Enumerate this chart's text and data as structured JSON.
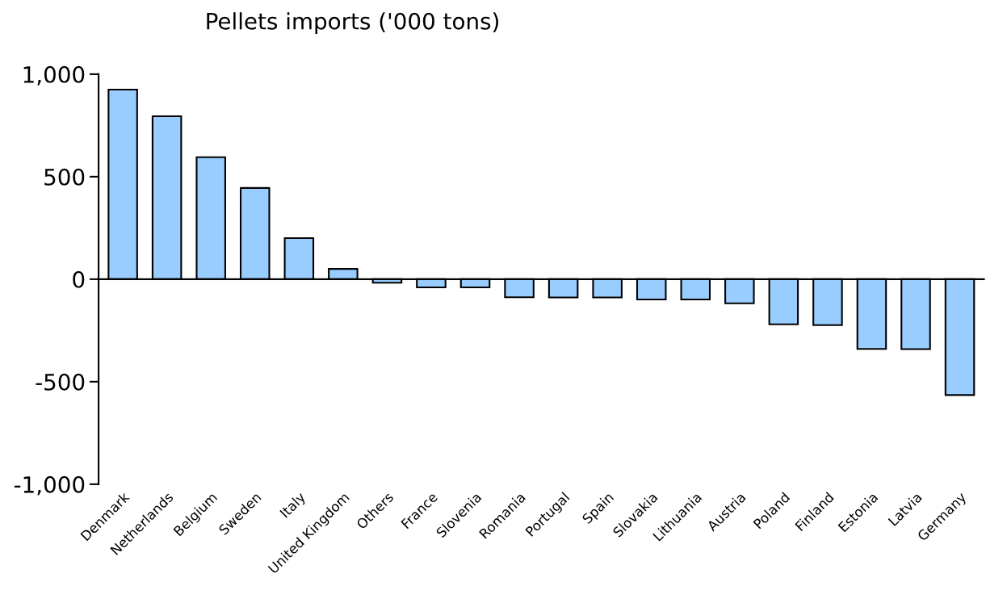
{
  "chart_data": {
    "type": "bar",
    "title": "Pellets imports ('000 tons)",
    "categories": [
      "Denmark",
      "Netherlands",
      "Belgium",
      "Sweden",
      "Italy",
      "United Kingdom",
      "Others",
      "France",
      "Slovenia",
      "Romania",
      "Portugal",
      "Spain",
      "Slovakia",
      "Lithuania",
      "Austria",
      "Poland",
      "Finland",
      "Estonia",
      "Latvia",
      "Germany"
    ],
    "values": [
      925,
      795,
      595,
      445,
      200,
      50,
      -17,
      -40,
      -40,
      -88,
      -89,
      -89,
      -99,
      -99,
      -118,
      -220,
      -224,
      -340,
      -341,
      -565
    ],
    "color": "#99ccff",
    "ylim": [
      -1000,
      1000
    ],
    "yticks": [
      {
        "value": -1000,
        "label": "-1,000"
      },
      {
        "value": -500,
        "label": "-500"
      },
      0,
      500,
      {
        "value": 1000,
        "label": "1,000"
      }
    ]
  }
}
